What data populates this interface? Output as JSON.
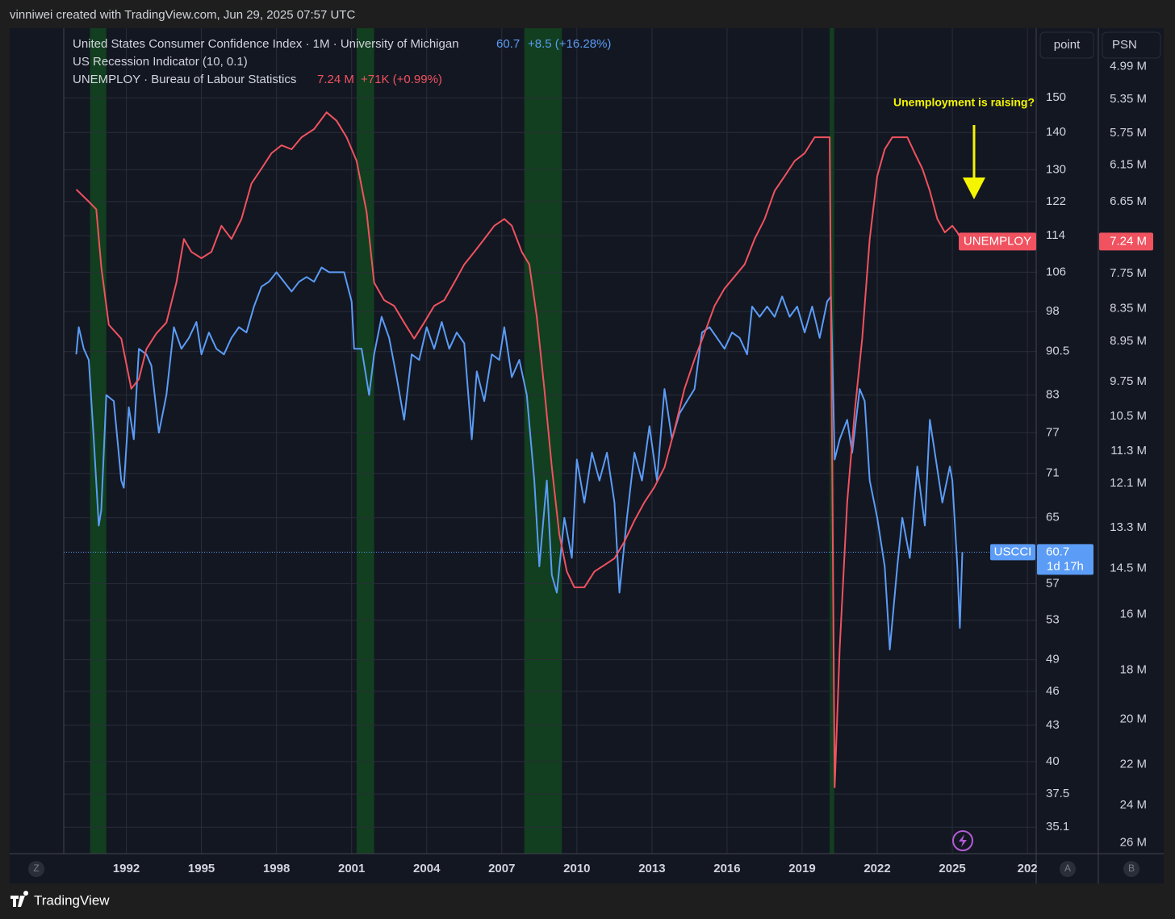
{
  "header": "vinniwei created with TradingView.com, Jun 29, 2025 07:57 UTC",
  "footer": "TradingView",
  "controls": {
    "style": "point",
    "symbol": "PSN",
    "left": "Z",
    "auto": "A",
    "right": "B"
  },
  "chart_data": {
    "type": "line",
    "annotation": "Unemployment is raising?",
    "recession_indicator": {
      "title": "US Recession Indicator (10, 0.1)",
      "color": "#123f1f",
      "periods": [
        [
          1990.55,
          1991.2
        ],
        [
          2001.2,
          2001.9
        ],
        [
          2007.9,
          2009.4
        ],
        [
          2020.1,
          2020.28
        ]
      ]
    },
    "series": [
      {
        "name": "USCCI",
        "title": "United States Consumer Confidence Index · 1M · University of Michigan",
        "last_label": "60.7",
        "change": "+8.5 (+16.28%)",
        "countdown": "1d 17h",
        "color": "#5b9cf6",
        "axis": "y",
        "x": [
          1990.0,
          1990.1,
          1990.3,
          1990.5,
          1990.7,
          1990.9,
          1991.0,
          1991.2,
          1991.5,
          1991.8,
          1991.9,
          1992.1,
          1992.3,
          1992.5,
          1992.8,
          1993.0,
          1993.3,
          1993.6,
          1993.9,
          1994.2,
          1994.5,
          1994.8,
          1995.0,
          1995.3,
          1995.6,
          1995.9,
          1996.2,
          1996.5,
          1996.8,
          1997.1,
          1997.4,
          1997.7,
          1998.0,
          1998.3,
          1998.6,
          1998.9,
          1999.2,
          1999.5,
          1999.8,
          2000.1,
          2000.4,
          2000.7,
          2001.0,
          2001.1,
          2001.4,
          2001.7,
          2001.9,
          2002.2,
          2002.5,
          2002.8,
          2003.1,
          2003.4,
          2003.7,
          2004.0,
          2004.3,
          2004.6,
          2004.9,
          2005.2,
          2005.5,
          2005.8,
          2006.0,
          2006.3,
          2006.6,
          2006.9,
          2007.1,
          2007.4,
          2007.7,
          2008.0,
          2008.3,
          2008.5,
          2008.8,
          2009.0,
          2009.2,
          2009.5,
          2009.8,
          2010.0,
          2010.3,
          2010.6,
          2010.9,
          2011.2,
          2011.5,
          2011.7,
          2012.0,
          2012.3,
          2012.6,
          2012.9,
          2013.2,
          2013.5,
          2013.8,
          2014.1,
          2014.4,
          2014.7,
          2015.0,
          2015.3,
          2015.6,
          2015.9,
          2016.2,
          2016.5,
          2016.8,
          2017.0,
          2017.3,
          2017.6,
          2017.9,
          2018.2,
          2018.5,
          2018.8,
          2019.1,
          2019.4,
          2019.7,
          2020.0,
          2020.15,
          2020.3,
          2020.5,
          2020.8,
          2021.0,
          2021.3,
          2021.5,
          2021.7,
          2022.0,
          2022.3,
          2022.5,
          2022.8,
          2023.0,
          2023.3,
          2023.6,
          2023.9,
          2024.1,
          2024.3,
          2024.6,
          2024.9,
          2025.0,
          2025.2,
          2025.3,
          2025.4
        ],
        "values": [
          90,
          95,
          91,
          89,
          76,
          64,
          66,
          83,
          82,
          70,
          69,
          81,
          76,
          91,
          90,
          88,
          77,
          83,
          95,
          91,
          93,
          96,
          90,
          94,
          91,
          90,
          93,
          95,
          94,
          99,
          103,
          104,
          106,
          104,
          102,
          104,
          105,
          104,
          107,
          106,
          106,
          106,
          100,
          91,
          91,
          83,
          90,
          97,
          93,
          86,
          79,
          90,
          89,
          95,
          91,
          96,
          91,
          94,
          92,
          76,
          87,
          82,
          90,
          89,
          95,
          86,
          89,
          83,
          70,
          59,
          70,
          58,
          56,
          65,
          60,
          73,
          67,
          74,
          70,
          74,
          67,
          56,
          65,
          74,
          70,
          78,
          70,
          84,
          76,
          80,
          82,
          84,
          94,
          95,
          93,
          91,
          94,
          93,
          90,
          99,
          97,
          99,
          97,
          101,
          97,
          99,
          94,
          99,
          93,
          100,
          101,
          73,
          76,
          79,
          74,
          84,
          82,
          70,
          65,
          59,
          50,
          59,
          65,
          60,
          72,
          64,
          79,
          74,
          67,
          72,
          70,
          59,
          52.2,
          60.7
        ]
      },
      {
        "name": "UNEMPLOY",
        "title": "UNEMPLOY · Bureau of Labour Statistics",
        "last_label": "7.24 M",
        "change": "+71K (+0.99%)",
        "color": "#f0525f",
        "axis": "y2",
        "x": [
          1990.0,
          1990.5,
          1990.8,
          1991.0,
          1991.3,
          1991.8,
          1992.2,
          1992.5,
          1992.8,
          1993.2,
          1993.6,
          1994.0,
          1994.3,
          1994.6,
          1995.0,
          1995.4,
          1995.8,
          1996.2,
          1996.6,
          1997.0,
          1997.4,
          1997.8,
          1998.2,
          1998.6,
          1999.0,
          1999.5,
          2000.0,
          2000.4,
          2000.8,
          2001.2,
          2001.6,
          2001.9,
          2002.3,
          2002.7,
          2003.1,
          2003.5,
          2003.9,
          2004.3,
          2004.7,
          2005.1,
          2005.5,
          2005.9,
          2006.3,
          2006.7,
          2007.1,
          2007.4,
          2007.8,
          2008.1,
          2008.4,
          2008.7,
          2009.0,
          2009.3,
          2009.6,
          2009.9,
          2010.3,
          2010.7,
          2011.1,
          2011.5,
          2011.9,
          2012.3,
          2012.7,
          2013.1,
          2013.5,
          2013.9,
          2014.3,
          2014.7,
          2015.1,
          2015.5,
          2015.9,
          2016.3,
          2016.7,
          2017.1,
          2017.5,
          2017.9,
          2018.3,
          2018.7,
          2019.1,
          2019.5,
          2019.9,
          2020.1,
          2020.3,
          2020.5,
          2020.8,
          2021.1,
          2021.4,
          2021.7,
          2022.0,
          2022.3,
          2022.6,
          2022.9,
          2023.2,
          2023.5,
          2023.8,
          2024.1,
          2024.4,
          2024.7,
          2025.0,
          2025.2,
          2025.4
        ],
        "values": [
          6.48,
          6.65,
          6.76,
          7.64,
          8.64,
          8.9,
          9.9,
          9.7,
          9.1,
          8.8,
          8.6,
          7.9,
          7.2,
          7.4,
          7.5,
          7.4,
          7.0,
          7.2,
          6.9,
          6.4,
          6.2,
          6.0,
          5.9,
          5.95,
          5.8,
          5.7,
          5.5,
          5.6,
          5.8,
          6.1,
          6.8,
          7.9,
          8.2,
          8.3,
          8.6,
          8.9,
          8.6,
          8.3,
          8.2,
          7.9,
          7.6,
          7.4,
          7.2,
          7.0,
          6.9,
          7.0,
          7.4,
          7.6,
          8.5,
          9.9,
          11.7,
          13.5,
          14.6,
          15.1,
          15.1,
          14.6,
          14.4,
          14.2,
          13.7,
          13.1,
          12.6,
          12.2,
          11.7,
          10.8,
          9.9,
          9.3,
          8.8,
          8.3,
          8.0,
          7.8,
          7.6,
          7.2,
          6.9,
          6.5,
          6.3,
          6.1,
          6.0,
          5.8,
          5.8,
          5.8,
          23.1,
          17.2,
          12.6,
          10.4,
          8.9,
          7.2,
          6.3,
          5.95,
          5.8,
          5.8,
          5.8,
          6.0,
          6.2,
          6.5,
          6.9,
          7.1,
          7.0,
          7.1,
          7.24
        ]
      }
    ],
    "xlim": [
      1989.5,
      2028.35
    ],
    "xticks": [
      1992,
      1995,
      1998,
      2001,
      2004,
      2007,
      2010,
      2013,
      2016,
      2019,
      2022,
      2025,
      {
        "value": 2028,
        "label": "202"
      }
    ],
    "ylim": [
      33.3,
      172.3
    ],
    "ylog": true,
    "yticks": [
      150,
      140,
      130,
      122,
      114,
      106,
      98,
      90.5,
      83,
      77,
      71,
      65,
      57,
      53,
      49,
      46,
      43,
      40,
      37.5,
      35.1
    ],
    "y2lim": [
      4.6,
      26.6
    ],
    "y2log": true,
    "y2inverted": true,
    "y2ticks": [
      {
        "value": 4.99,
        "label": "4.99 M"
      },
      {
        "value": 5.35,
        "label": "5.35 M"
      },
      {
        "value": 5.75,
        "label": "5.75 M"
      },
      {
        "value": 6.15,
        "label": "6.15 M"
      },
      {
        "value": 6.65,
        "label": "6.65 M"
      },
      {
        "value": 7.75,
        "label": "7.75 M"
      },
      {
        "value": 8.35,
        "label": "8.35 M"
      },
      {
        "value": 8.95,
        "label": "8.95 M"
      },
      {
        "value": 9.75,
        "label": "9.75 M"
      },
      {
        "value": 10.5,
        "label": "10.5 M"
      },
      {
        "value": 11.3,
        "label": "11.3 M"
      },
      {
        "value": 12.1,
        "label": "12.1 M"
      },
      {
        "value": 13.3,
        "label": "13.3 M"
      },
      {
        "value": 14.5,
        "label": "14.5 M"
      },
      {
        "value": 16,
        "label": "16 M"
      },
      {
        "value": 18,
        "label": "18 M"
      },
      {
        "value": 20,
        "label": "20 M"
      },
      {
        "value": 22,
        "label": "22 M"
      },
      {
        "value": 24,
        "label": "24 M"
      },
      {
        "value": 26,
        "label": "26 M"
      }
    ],
    "grid": true
  }
}
